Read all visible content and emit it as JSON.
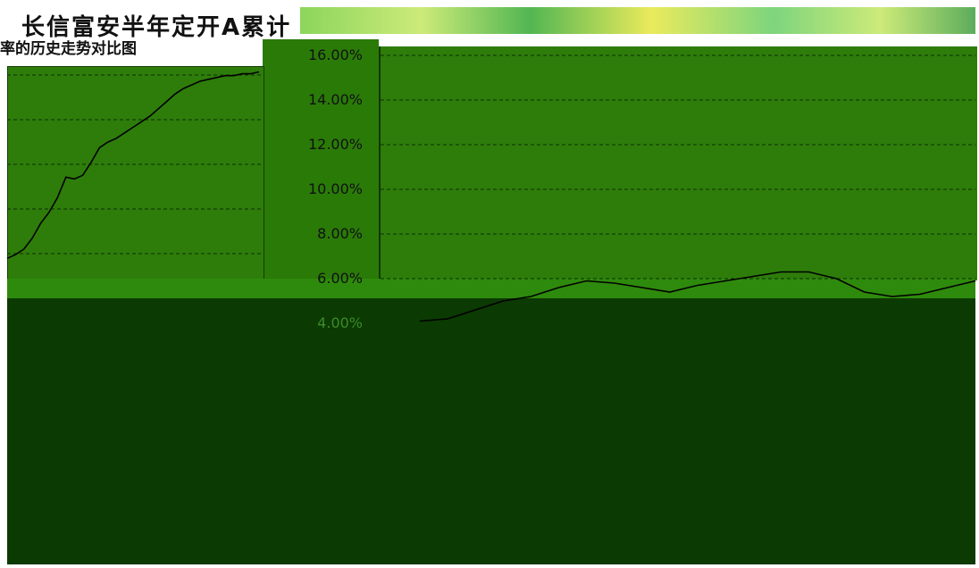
{
  "header": {
    "title": "长信富安半年定开A累计",
    "subtitle": "率的历史走势对比图"
  },
  "chart_data": [
    {
      "type": "line",
      "title": "",
      "xlabel": "",
      "ylabel": "",
      "grid": true,
      "series": [
        {
          "x": [
            0,
            1,
            2,
            3,
            4,
            5,
            6,
            7,
            8,
            9,
            10,
            11,
            12,
            13,
            14,
            15,
            16,
            17,
            18,
            19,
            20,
            21,
            22,
            23,
            24,
            25,
            26,
            27,
            28,
            29,
            30
          ],
          "values": [
            5.1,
            5.3,
            5.6,
            6.2,
            7.0,
            7.6,
            8.4,
            9.5,
            9.4,
            9.6,
            10.3,
            11.1,
            11.4,
            11.6,
            11.9,
            12.2,
            12.5,
            12.8,
            13.2,
            13.6,
            14.0,
            14.3,
            14.5,
            14.7,
            14.8,
            14.9,
            15.0,
            15.0,
            15.1,
            15.1,
            15.2
          ]
        }
      ]
    },
    {
      "type": "line",
      "title": "",
      "xlabel": "",
      "ylabel": "",
      "ylim": [
        4,
        16
      ],
      "grid": true,
      "y_ticks": [
        "16.00%",
        "14.00%",
        "12.00%",
        "10.00%",
        "8.00%",
        "6.00%",
        "4.00%"
      ],
      "series": [
        {
          "x": [
            0,
            1,
            2,
            3,
            4,
            5,
            6,
            7,
            8,
            9,
            10,
            11,
            12,
            13,
            14,
            15,
            16,
            17,
            18,
            19,
            20
          ],
          "values": [
            4.1,
            4.2,
            4.6,
            5.0,
            5.2,
            5.6,
            5.9,
            5.8,
            5.6,
            5.4,
            5.7,
            5.9,
            6.1,
            6.3,
            6.3,
            6.0,
            5.4,
            5.2,
            5.3,
            5.6,
            5.9
          ]
        }
      ]
    }
  ],
  "colors": {
    "panel": "#2e7d0b",
    "grid": "#0c2e00",
    "line": "#000000",
    "dark": "#0b3a02"
  }
}
